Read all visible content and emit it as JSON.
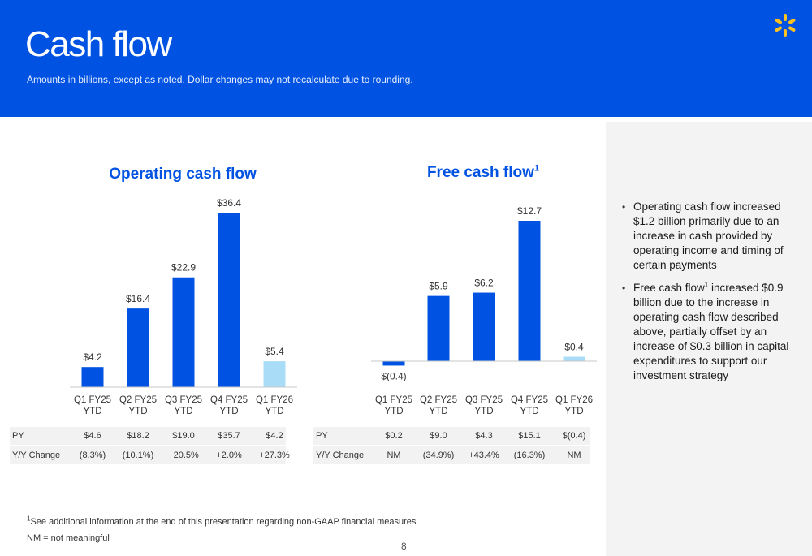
{
  "header": {
    "title": "Cash flow",
    "subtitle": "Amounts in billions, except as noted.  Dollar changes may not recalculate due to rounding.",
    "logo_icon": "spark-icon",
    "logo_color": "#ffc220",
    "background": "#0053e2"
  },
  "chart_data": [
    {
      "type": "bar",
      "title": "Operating cash flow",
      "categories": [
        "Q1 FY25\nYTD",
        "Q2 FY25\nYTD",
        "Q3 FY25\nYTD",
        "Q4 FY25\nYTD",
        "Q1 FY26\nYTD"
      ],
      "values": [
        4.2,
        16.4,
        22.9,
        36.4,
        5.4
      ],
      "labels": [
        "$4.2",
        "$16.4",
        "$22.9",
        "$36.4",
        "$5.4"
      ],
      "colors": [
        "#0053e2",
        "#0053e2",
        "#0053e2",
        "#0053e2",
        "#a9ddf7"
      ],
      "ylim": [
        0,
        36.4
      ],
      "grid": false,
      "table": {
        "rows": [
          {
            "label": "PY",
            "values": [
              "$4.6",
              "$18.2",
              "$19.0",
              "$35.7",
              "$4.2"
            ]
          },
          {
            "label": "Y/Y Change",
            "values": [
              "(8.3%)",
              "(10.1%)",
              "+20.5%",
              "+2.0%",
              "+27.3%"
            ]
          }
        ]
      }
    },
    {
      "type": "bar",
      "title": "Free cash flow",
      "title_sup": "1",
      "categories": [
        "Q1 FY25\nYTD",
        "Q2 FY25\nYTD",
        "Q3 FY25\nYTD",
        "Q4 FY25\nYTD",
        "Q1 FY26\nYTD"
      ],
      "values": [
        -0.4,
        5.9,
        6.2,
        12.7,
        0.4
      ],
      "labels": [
        "$(0.4)",
        "$5.9",
        "$6.2",
        "$12.7",
        "$0.4"
      ],
      "colors": [
        "#0053e2",
        "#0053e2",
        "#0053e2",
        "#0053e2",
        "#a9ddf7"
      ],
      "ylim": [
        -0.4,
        12.7
      ],
      "grid": false,
      "table": {
        "rows": [
          {
            "label": "PY",
            "values": [
              "$0.2",
              "$9.0",
              "$4.3",
              "$15.1",
              "$(0.4)"
            ]
          },
          {
            "label": "Y/Y Change",
            "values": [
              "NM",
              "(34.9%)",
              "+43.4%",
              "(16.3%)",
              "NM"
            ]
          }
        ]
      }
    }
  ],
  "sidebar": {
    "bullet1": "Operating cash flow increased $1.2 billion primarily due to an increase in cash provided by operating income and timing of certain payments",
    "bullet2_pre": "Free cash flow",
    "bullet2_sup": "1",
    "bullet2_post": " increased $0.9 billion due to the increase in operating cash flow described above, partially offset by an increase of $0.3 billion in capital expenditures to support our investment strategy"
  },
  "footer": {
    "footnote_sup": "1",
    "footnote": "See additional information at the end of this presentation regarding non-GAAP financial measures.",
    "nm_note": "NM = not meaningful",
    "page_number": "8"
  }
}
